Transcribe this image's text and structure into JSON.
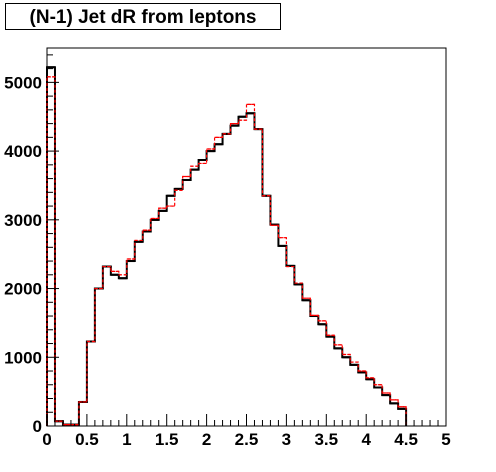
{
  "chart_data": {
    "type": "histogram",
    "title": "(N-1) Jet dR from leptons",
    "xlabel": "",
    "ylabel": "",
    "xlim": [
      0,
      5
    ],
    "ylim": [
      0,
      5500
    ],
    "grid": false,
    "bin_width": 0.1,
    "x_ticks": [
      0,
      0.5,
      1,
      1.5,
      2,
      2.5,
      3,
      3.5,
      4,
      4.5,
      5
    ],
    "x_tick_labels": [
      "0",
      "0.5",
      "1",
      "1.5",
      "2",
      "2.5",
      "3",
      "3.5",
      "4",
      "4.5",
      "5"
    ],
    "y_ticks": [
      0,
      1000,
      2000,
      3000,
      4000,
      5000
    ],
    "y_tick_labels": [
      "0",
      "1000",
      "2000",
      "3000",
      "4000",
      "5000"
    ],
    "series": [
      {
        "style": "solid",
        "color": "#000000",
        "values": [
          5220,
          70,
          20,
          20,
          350,
          1230,
          2000,
          2320,
          2200,
          2150,
          2400,
          2680,
          2830,
          3000,
          3130,
          3350,
          3450,
          3580,
          3730,
          3870,
          4000,
          4100,
          4250,
          4370,
          4500,
          4550,
          4320,
          3350,
          2930,
          2620,
          2330,
          2060,
          1830,
          1600,
          1480,
          1300,
          1130,
          1000,
          890,
          780,
          680,
          560,
          450,
          330,
          250
        ]
      },
      {
        "style": "dashed",
        "color": "#ff0000",
        "values": [
          5080,
          70,
          20,
          20,
          350,
          1230,
          2000,
          2320,
          2250,
          2200,
          2430,
          2700,
          2850,
          3020,
          3170,
          3200,
          3430,
          3630,
          3780,
          3820,
          4030,
          4200,
          4250,
          4400,
          4450,
          4680,
          4320,
          3350,
          2920,
          2740,
          2320,
          2080,
          1860,
          1610,
          1530,
          1320,
          1180,
          1040,
          930,
          800,
          700,
          600,
          480,
          380,
          280
        ]
      }
    ]
  }
}
